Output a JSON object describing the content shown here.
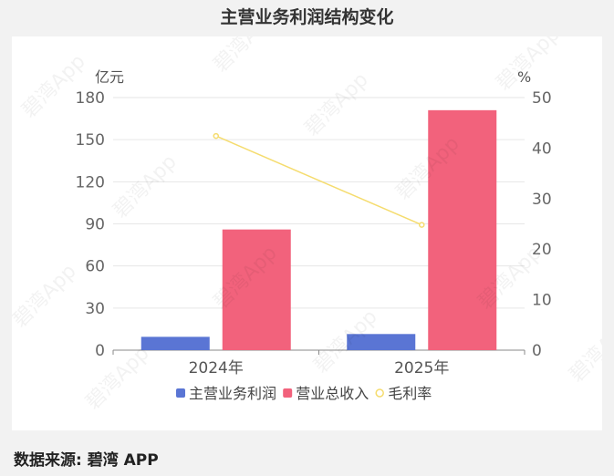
{
  "title": "主营业务利润结构变化",
  "source": "数据来源: 碧湾 APP",
  "watermark": "碧湾App",
  "chart_data": {
    "type": "bar",
    "categories": [
      "2024年",
      "2025年"
    ],
    "left_axis_unit": "亿元",
    "right_axis_unit": "%",
    "ylim_left": [
      0,
      180
    ],
    "ylim_right": [
      0,
      50
    ],
    "left_ticks": [
      0,
      30,
      60,
      90,
      120,
      150,
      180
    ],
    "right_ticks": [
      0,
      10,
      20,
      30,
      40,
      50
    ],
    "series": [
      {
        "name": "主营业务利润",
        "type": "bar",
        "axis": "left",
        "color": "#5a75d4",
        "values": [
          9.5,
          11.5
        ]
      },
      {
        "name": "营业总收入",
        "type": "bar",
        "axis": "left",
        "color": "#f2627c",
        "values": [
          86,
          171
        ]
      },
      {
        "name": "毛利率",
        "type": "line",
        "axis": "right",
        "color": "#f5dc6e",
        "values": [
          42.4,
          24.8
        ]
      }
    ],
    "legend_position": "bottom",
    "grid": true
  }
}
